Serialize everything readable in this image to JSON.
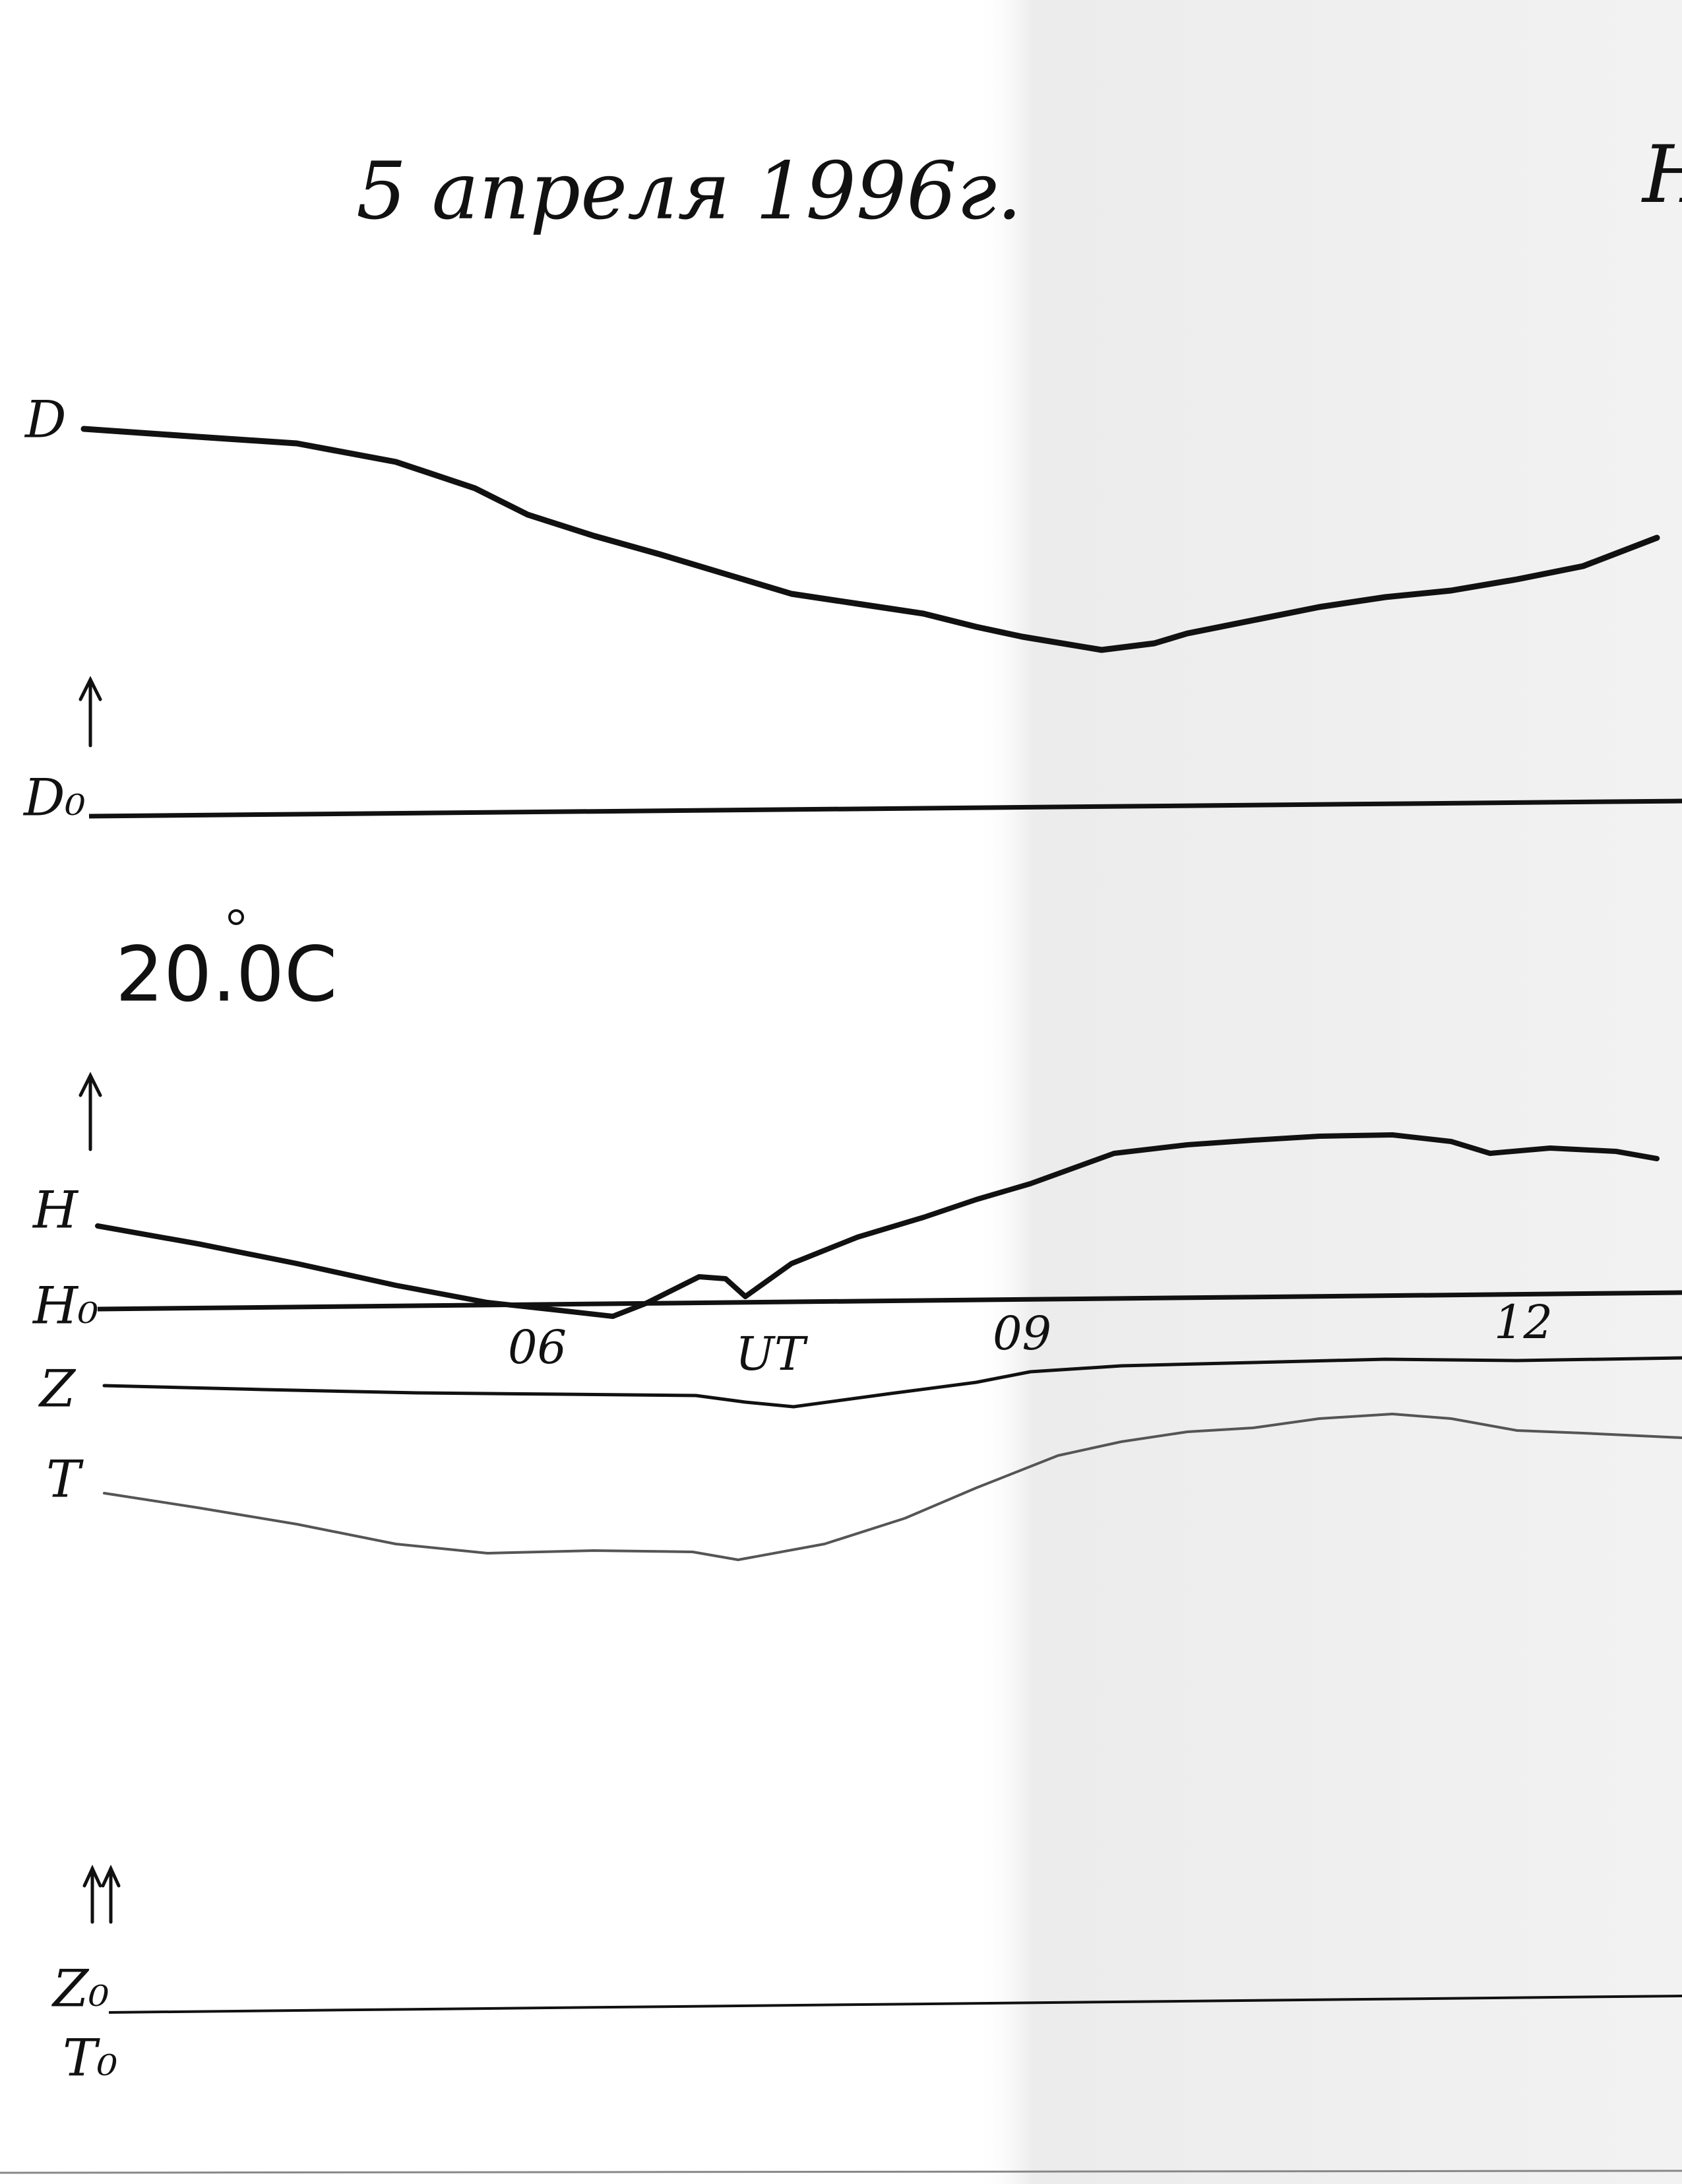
{
  "header": {
    "title": "5 апреля 1996г.",
    "corner": "Н"
  },
  "temperature": "20.0C",
  "traces": [
    {
      "label": "D"
    },
    {
      "label": "H"
    },
    {
      "label": "Z"
    },
    {
      "label": "T"
    }
  ],
  "baselines": [
    {
      "label": "D₀"
    },
    {
      "label": "H₀"
    },
    {
      "label": "Z₀"
    },
    {
      "label": "T₀"
    }
  ],
  "time_axis": [
    "06",
    "UT",
    "09",
    "12"
  ]
}
